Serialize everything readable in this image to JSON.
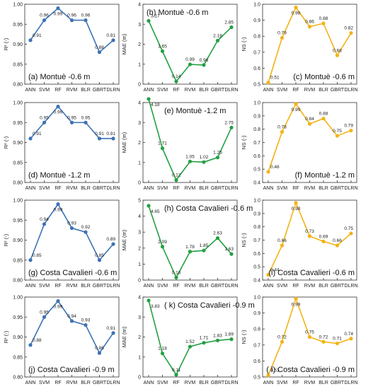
{
  "colors": {
    "r2": "#3d72b4",
    "mae": "#23a043",
    "ns": "#f2b316"
  },
  "chart_data": [
    {
      "type": "line",
      "title": "(a) Montuè -0.6 m",
      "ylabel": "R² (-)",
      "categories": [
        "ANN",
        "SVM",
        "RF",
        "RVM",
        "BLR",
        "GBRT",
        "DLRN"
      ],
      "values": [
        0.91,
        0.96,
        0.99,
        0.96,
        0.96,
        0.88,
        0.91
      ],
      "labels": [
        "0.91",
        "0.96",
        "0.99",
        "0.96",
        "0.96",
        "0.88",
        "0.91"
      ],
      "ylim": [
        0.8,
        1.0
      ],
      "yticks": [
        "0.80",
        "0.85",
        "0.90",
        "0.95",
        "1.00"
      ],
      "yticks_values": [
        0.8,
        0.85,
        0.9,
        0.95,
        1.0
      ],
      "color_key": "r2"
    },
    {
      "type": "line",
      "title": "(b) Montuè -0.6 m",
      "ylabel": "MAE (m)",
      "categories": [
        "ANN",
        "SVM",
        "RF",
        "RVM",
        "BLR",
        "GBRT",
        "DLRN"
      ],
      "values": [
        3.17,
        1.65,
        0.14,
        0.99,
        0.96,
        2.18,
        2.85
      ],
      "labels": [
        "3.17",
        "1.65",
        "0.14",
        "0.99",
        "0.96",
        "2.18",
        "2.85"
      ],
      "ylim": [
        0,
        4
      ],
      "yticks": [
        "0",
        "1",
        "2",
        "3",
        "4"
      ],
      "yticks_values": [
        0,
        1,
        2,
        3,
        4
      ],
      "color_key": "mae"
    },
    {
      "type": "line",
      "title": "(c) Montuè -0.6 m",
      "ylabel": "NS (-)",
      "categories": [
        "ANN",
        "SVM",
        "RF",
        "RVM",
        "BLR",
        "GBRT",
        "DLRN"
      ],
      "values": [
        0.51,
        0.79,
        0.98,
        0.86,
        0.88,
        0.68,
        0.82
      ],
      "labels": [
        "0.51",
        "0.79",
        "0.98",
        "0.86",
        "0.88",
        "0.68",
        "0.82"
      ],
      "ylim": [
        0.5,
        1.0
      ],
      "yticks": [
        "0.5",
        "0.6",
        "0.7",
        "0.8",
        "0.9",
        "1.0"
      ],
      "yticks_values": [
        0.5,
        0.6,
        0.7,
        0.8,
        0.9,
        1.0
      ],
      "color_key": "ns"
    },
    {
      "type": "line",
      "title": "(d) Montuè -1.2 m",
      "ylabel": "R² (-)",
      "categories": [
        "ANN",
        "SVM",
        "RF",
        "RVM",
        "BLR",
        "GBRT",
        "DLRN"
      ],
      "values": [
        0.91,
        0.95,
        0.99,
        0.95,
        0.95,
        0.91,
        0.91
      ],
      "labels": [
        "0.91",
        "0.95",
        "0.99",
        "0.95",
        "0.95",
        "0.91",
        "0.91"
      ],
      "ylim": [
        0.8,
        1.0
      ],
      "yticks": [
        "0.80",
        "0.85",
        "0.90",
        "0.95",
        "1.00"
      ],
      "yticks_values": [
        0.8,
        0.85,
        0.9,
        0.95,
        1.0
      ],
      "color_key": "r2"
    },
    {
      "type": "line",
      "title": "(e) Montuè -1.2 m",
      "ylabel": "MAE (m)",
      "categories": [
        "ANN",
        "SVM",
        "RF",
        "RVM",
        "BLR",
        "GBRT",
        "DLRN"
      ],
      "values": [
        4.18,
        1.71,
        0.12,
        1.05,
        1.02,
        1.25,
        2.75
      ],
      "labels": [
        "4.18",
        "1.71",
        "0.12",
        "1.05",
        "1.02",
        "1.25",
        "2.75"
      ],
      "ylim": [
        0,
        4
      ],
      "yticks": [
        "0",
        "1",
        "2",
        "3",
        "4"
      ],
      "yticks_values": [
        0,
        1,
        2,
        3,
        4
      ],
      "color_key": "mae"
    },
    {
      "type": "line",
      "title": "(f) Montuè -1.2 m",
      "ylabel": "NS (-)",
      "categories": [
        "ANN",
        "SVM",
        "RF",
        "RVM",
        "BLR",
        "GBRT",
        "DLRN"
      ],
      "values": [
        0.48,
        0.78,
        0.99,
        0.84,
        0.88,
        0.75,
        0.79
      ],
      "labels": [
        "0.48",
        "0.78",
        "0.99",
        "0.84",
        "0.88",
        "0.75",
        "0.79"
      ],
      "ylim": [
        0.4,
        1.0
      ],
      "yticks": [
        "0.4",
        "0.5",
        "0.6",
        "0.7",
        "0.8",
        "0.9",
        "1.0"
      ],
      "yticks_values": [
        0.4,
        0.5,
        0.6,
        0.7,
        0.8,
        0.9,
        1.0
      ],
      "color_key": "ns"
    },
    {
      "type": "line",
      "title": "(g) Costa Cavalieri -0.6 m",
      "ylabel": "R² (-)",
      "categories": [
        "ANN",
        "SVM",
        "RF",
        "RVM",
        "BLR",
        "GBRT",
        "DLRN"
      ],
      "values": [
        0.85,
        0.94,
        0.99,
        0.93,
        0.92,
        0.85,
        0.89
      ],
      "labels": [
        "0.85",
        "0.94",
        "0.99",
        "0.93",
        "0.92",
        "0.85",
        "0.89"
      ],
      "ylim": [
        0.8,
        1.0
      ],
      "yticks": [
        "0.80",
        "0.85",
        "0.90",
        "0.95",
        "1.00"
      ],
      "yticks_values": [
        0.8,
        0.85,
        0.9,
        0.95,
        1.0
      ],
      "color_key": "r2"
    },
    {
      "type": "line",
      "title": "(h) Costa Cavalieri -0.6 m",
      "ylabel": "MAE (m)",
      "categories": [
        "ANN",
        "SVM",
        "RF",
        "RVM",
        "BLR",
        "GBRT",
        "DLRN"
      ],
      "values": [
        4.65,
        2.09,
        0.16,
        1.78,
        1.85,
        2.63,
        1.63
      ],
      "labels": [
        "4.65",
        "2.09",
        "0.16",
        "1.78",
        "1.85",
        "2.63",
        "1.63"
      ],
      "ylim": [
        0,
        5
      ],
      "yticks": [
        "0",
        "1",
        "2",
        "3",
        "4",
        "5"
      ],
      "yticks_values": [
        0,
        1,
        2,
        3,
        4,
        5
      ],
      "color_key": "mae"
    },
    {
      "type": "line",
      "title": "(i) Costa Cavalieri -0.6 m",
      "ylabel": "NS (-)",
      "categories": [
        "ANN",
        "SVM",
        "RF",
        "RVM",
        "BLR",
        "GBRT",
        "DLRN"
      ],
      "values": [
        0.44,
        0.66,
        0.98,
        0.73,
        0.69,
        0.66,
        0.75
      ],
      "labels": [
        "0.44",
        "0.66",
        "0.98",
        "0.73",
        "0.69",
        "0.66",
        "0.75"
      ],
      "ylim": [
        0.4,
        1.0
      ],
      "yticks": [
        "0.4",
        "0.5",
        "0.6",
        "0.7",
        "0.8",
        "0.9",
        "1.0"
      ],
      "yticks_values": [
        0.4,
        0.5,
        0.6,
        0.7,
        0.8,
        0.9,
        1.0
      ],
      "color_key": "ns"
    },
    {
      "type": "line",
      "title": "(j) Costa Cavalieri -0.9 m",
      "ylabel": "R² (-)",
      "categories": [
        "ANN",
        "SVM",
        "RF",
        "RVM",
        "BLR",
        "GBRT",
        "DLRN"
      ],
      "values": [
        0.88,
        0.95,
        0.99,
        0.94,
        0.93,
        0.86,
        0.91
      ],
      "labels": [
        "0.88",
        "0.95",
        "0.99",
        "0.94",
        "0.93",
        "0.86",
        "0.91"
      ],
      "ylim": [
        0.8,
        1.0
      ],
      "yticks": [
        "0.80",
        "0.85",
        "0.90",
        "0.95",
        "1.00"
      ],
      "yticks_values": [
        0.8,
        0.85,
        0.9,
        0.95,
        1.0
      ],
      "color_key": "r2"
    },
    {
      "type": "line",
      "title": "( k) Costa Cavalieri -0.9 m",
      "ylabel": "MAE (m)",
      "categories": [
        "ANN",
        "SVM",
        "RF",
        "RVM",
        "BLR",
        "GBRT",
        "DLRN"
      ],
      "values": [
        3.83,
        1.18,
        0.11,
        1.52,
        1.71,
        1.83,
        1.89
      ],
      "labels": [
        "3.83",
        "1.18",
        "0.11",
        "1.52",
        "1.71",
        "1.83",
        "1.89"
      ],
      "ylim": [
        0,
        4
      ],
      "yticks": [
        "0",
        "1",
        "2",
        "3",
        "4"
      ],
      "yticks_values": [
        0,
        1,
        2,
        3,
        4
      ],
      "color_key": "mae"
    },
    {
      "type": "line",
      "title": "( l) Costa Cavalieri -0.9 m",
      "ylabel": "NS (-)",
      "categories": [
        "ANN",
        "SVM",
        "RF",
        "RVM",
        "BLR",
        "GBRT",
        "DLRN"
      ],
      "values": [
        0.51,
        0.72,
        0.99,
        0.75,
        0.72,
        0.71,
        0.74
      ],
      "labels": [
        "0.51",
        "0.72",
        "0.99",
        "0.75",
        "0.72",
        "0.71",
        "0.74"
      ],
      "ylim": [
        0.5,
        1.0
      ],
      "yticks": [
        "0.5",
        "0.6",
        "0.7",
        "0.8",
        "0.9",
        "1.0"
      ],
      "yticks_values": [
        0.5,
        0.6,
        0.7,
        0.8,
        0.9,
        1.0
      ],
      "color_key": "ns"
    }
  ]
}
